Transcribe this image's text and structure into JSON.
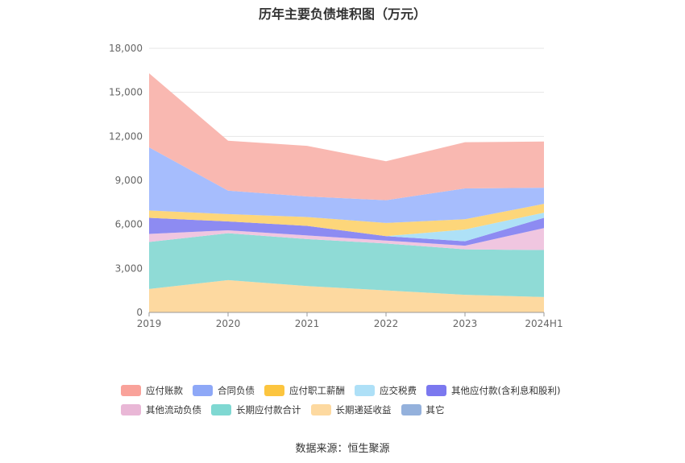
{
  "chart_data": {
    "type": "area",
    "stacked": true,
    "title": "历年主要负债堆积图（万元）",
    "categories": [
      "2019",
      "2020",
      "2021",
      "2022",
      "2023",
      "2024H1"
    ],
    "ylim": [
      0,
      18000
    ],
    "yticks": [
      "0",
      "3,000",
      "6,000",
      "9,000",
      "12,000",
      "15,000",
      "18,000"
    ],
    "grid": true,
    "legend_position": "bottom",
    "series": [
      {
        "name": "长期递延收益",
        "color": "#fdd9a0",
        "values": [
          1600,
          2200,
          1800,
          1500,
          1200,
          1050
        ]
      },
      {
        "name": "长期应付款合计",
        "color": "#8fdbd6",
        "values": [
          3200,
          3200,
          3200,
          3200,
          3100,
          3200
        ]
      },
      {
        "name": "其他流动负债",
        "color": "#f0c6e0",
        "values": [
          550,
          200,
          250,
          200,
          250,
          1500
        ]
      },
      {
        "name": "其他应付款(含利息和股利)",
        "color": "#8d8bf2",
        "values": [
          1100,
          600,
          650,
          300,
          300,
          700
        ]
      },
      {
        "name": "应交税费",
        "color": "#aee1f7",
        "values": [
          0,
          0,
          0,
          0,
          800,
          350
        ]
      },
      {
        "name": "应付职工薪酬",
        "color": "#fdd67a",
        "values": [
          500,
          500,
          600,
          900,
          700,
          600
        ]
      },
      {
        "name": "合同负债",
        "color": "#a6bdfd",
        "values": [
          4300,
          1600,
          1400,
          1550,
          2100,
          1100
        ]
      },
      {
        "name": "应付账款",
        "color": "#f9b8b1",
        "values": [
          5050,
          3400,
          3450,
          2650,
          3150,
          3150
        ]
      },
      {
        "name": "其它",
        "color": "#94b1dc",
        "values": [
          0,
          0,
          0,
          0,
          0,
          0
        ]
      }
    ]
  },
  "legend": {
    "row1": [
      {
        "label": "应付账款",
        "color": "#f9a29a"
      },
      {
        "label": "合同负债",
        "color": "#8ea8f7"
      },
      {
        "label": "应付职工薪酬",
        "color": "#fcc53f"
      },
      {
        "label": "应交税费",
        "color": "#aee0f7"
      },
      {
        "label": "其他应付款(含利息和股利)",
        "color": "#7b78ef"
      }
    ],
    "row2": [
      {
        "label": "其他流动负债",
        "color": "#e9b7d6"
      },
      {
        "label": "长期应付款合计",
        "color": "#7fd8d2"
      },
      {
        "label": "长期递延收益",
        "color": "#fdd9a0"
      },
      {
        "label": "其它",
        "color": "#94b1dc"
      }
    ]
  },
  "source": "数据来源：恒生聚源"
}
